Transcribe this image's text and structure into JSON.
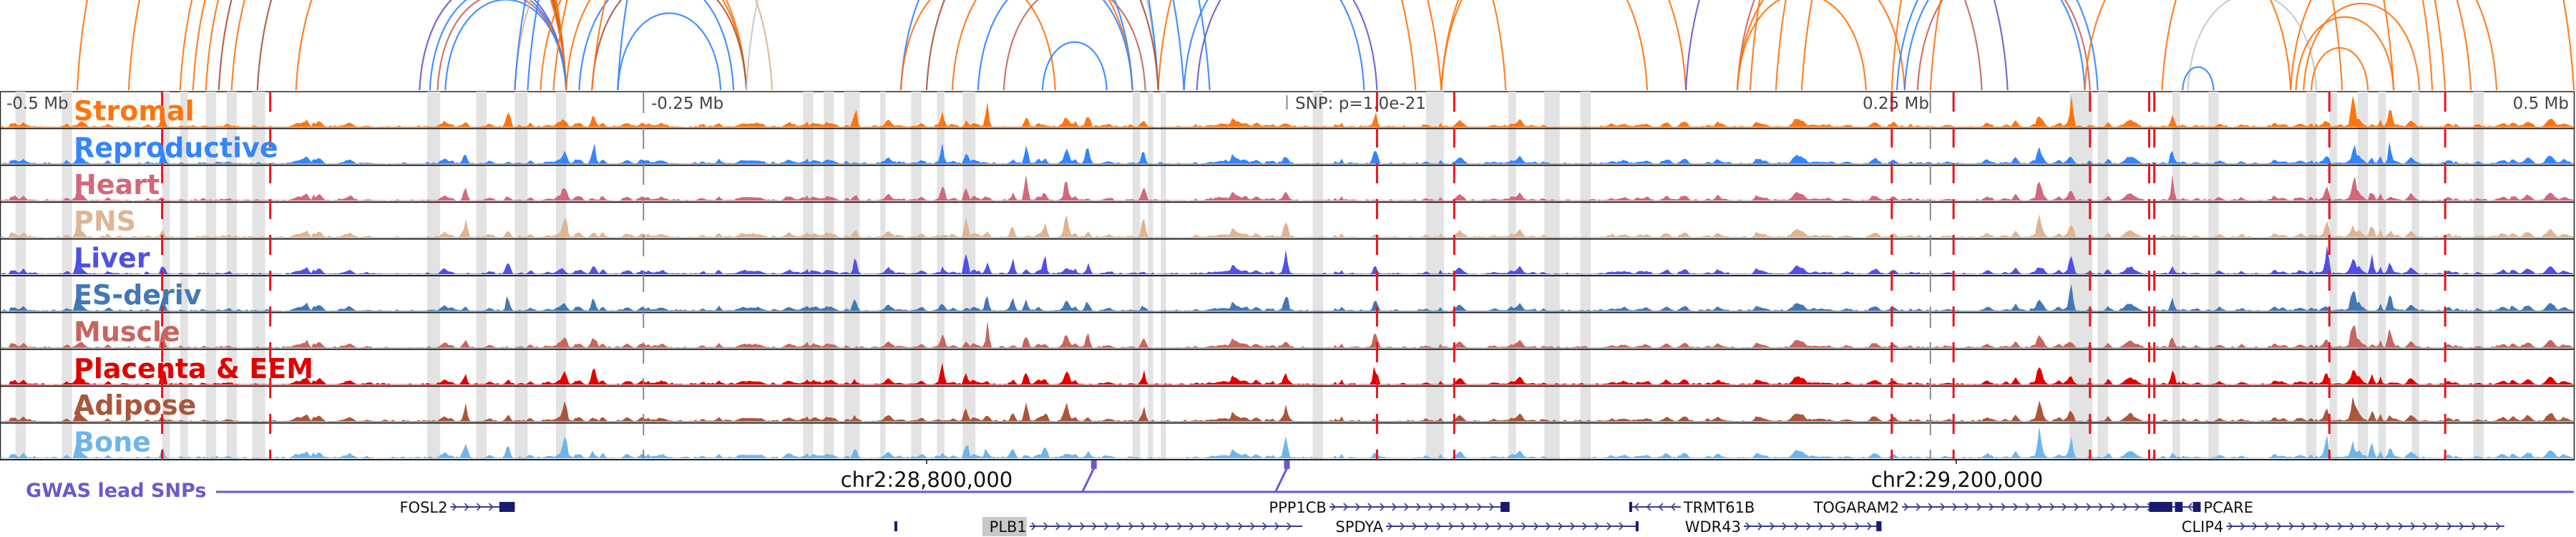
{
  "view": {
    "region_mb": [
      -0.5,
      0.5
    ],
    "axis_ticks": [
      {
        "pos_mb": -0.5,
        "label": "-0.5 Mb"
      },
      {
        "pos_mb": -0.25,
        "label": "-0.25 Mb"
      },
      {
        "pos_mb": 0.25,
        "label": "0.25 Mb"
      },
      {
        "pos_mb": 0.5,
        "label": "0.5 Mb"
      }
    ],
    "snp_label": "SNP: p=1.0e-21",
    "coordinates": [
      {
        "pos_mb": -0.14,
        "label": "chr2:28,800,000"
      },
      {
        "pos_mb": 0.26,
        "label": "chr2:29,200,000"
      }
    ]
  },
  "tracks": [
    {
      "name": "Stromal",
      "color": "#ff7410"
    },
    {
      "name": "Reproductive",
      "color": "#3385ff"
    },
    {
      "name": "Heart",
      "color": "#d0697c"
    },
    {
      "name": "PNS",
      "color": "#deb593"
    },
    {
      "name": "Liver",
      "color": "#5050e6"
    },
    {
      "name": "ES-deriv",
      "color": "#4378b3"
    },
    {
      "name": "Muscle",
      "color": "#c6665f"
    },
    {
      "name": "Placenta & EEM",
      "color": "#e00000"
    },
    {
      "name": "Adipose",
      "color": "#a9573b"
    },
    {
      "name": "Bone",
      "color": "#6eb5ea"
    }
  ],
  "highlight_regions_mb": [
    [
      -0.494,
      -0.49
    ],
    [
      -0.476,
      -0.472
    ],
    [
      -0.412,
      -0.408
    ],
    [
      -0.437,
      -0.434
    ],
    [
      -0.43,
      -0.427
    ],
    [
      -0.42,
      -0.416
    ],
    [
      -0.402,
      -0.397
    ],
    [
      -0.334,
      -0.329
    ],
    [
      -0.315,
      -0.311
    ],
    [
      -0.3,
      -0.295
    ],
    [
      -0.284,
      -0.28
    ],
    [
      -0.188,
      -0.184
    ],
    [
      -0.18,
      -0.176
    ],
    [
      -0.172,
      -0.166
    ],
    [
      -0.158,
      -0.156
    ],
    [
      -0.146,
      -0.142
    ],
    [
      -0.136,
      -0.133
    ],
    [
      -0.126,
      -0.121
    ],
    [
      -0.06,
      -0.057
    ],
    [
      -0.054,
      -0.052
    ],
    [
      -0.049,
      -0.047
    ],
    [
      0.01,
      0.014
    ],
    [
      0.054,
      0.058
    ],
    [
      0.058,
      0.061
    ],
    [
      0.086,
      0.089
    ],
    [
      0.1,
      0.106
    ],
    [
      0.114,
      0.118
    ],
    [
      0.304,
      0.313
    ],
    [
      0.315,
      0.319
    ],
    [
      0.344,
      0.347
    ],
    [
      0.358,
      0.362
    ],
    [
      0.396,
      0.4
    ],
    [
      0.405,
      0.408
    ],
    [
      0.416,
      0.42
    ],
    [
      0.424,
      0.427
    ],
    [
      0.437,
      0.44
    ],
    [
      0.461,
      0.465
    ]
  ],
  "red_lines_mb": [
    -0.437,
    -0.395,
    0.035,
    0.065,
    0.235,
    0.259,
    0.312,
    0.335,
    0.405,
    0.45,
    0.337
  ],
  "arcs": [
    {
      "from": -0.47,
      "to": -0.28,
      "color": "#ff7410"
    },
    {
      "from": -0.45,
      "to": -0.28,
      "color": "#ff7410"
    },
    {
      "from": -0.43,
      "to": -0.28,
      "color": "#ff7410"
    },
    {
      "from": -0.425,
      "to": -0.28,
      "color": "#ff7410"
    },
    {
      "from": -0.42,
      "to": -0.28,
      "color": "#ff7410"
    },
    {
      "from": -0.415,
      "to": -0.28,
      "color": "#a9573b"
    },
    {
      "from": -0.41,
      "to": -0.28,
      "color": "#ff7410"
    },
    {
      "from": -0.4,
      "to": -0.28,
      "color": "#a9573b"
    },
    {
      "from": -0.385,
      "to": -0.28,
      "color": "#ff7410"
    },
    {
      "from": -0.337,
      "to": -0.28,
      "color": "#6a5acd"
    },
    {
      "from": -0.333,
      "to": -0.28,
      "color": "#3385ff"
    },
    {
      "from": -0.33,
      "to": -0.28,
      "color": "#c6665f"
    },
    {
      "from": -0.327,
      "to": -0.28,
      "color": "#3385ff"
    },
    {
      "from": -0.3,
      "to": -0.2,
      "color": "#deb593"
    },
    {
      "from": -0.29,
      "to": -0.21,
      "color": "#ff7410"
    },
    {
      "from": -0.28,
      "to": -0.21,
      "color": "#ff7410"
    },
    {
      "from": -0.275,
      "to": -0.215,
      "color": "#3385ff"
    },
    {
      "from": -0.27,
      "to": -0.21,
      "color": "#a9573b"
    },
    {
      "from": -0.26,
      "to": -0.22,
      "color": "#3385ff"
    },
    {
      "from": -0.21,
      "to": -0.05,
      "color": "#c8c8c8"
    },
    {
      "from": -0.3,
      "to": -0.04,
      "color": "#3385ff"
    },
    {
      "from": -0.295,
      "to": -0.03,
      "color": "#3385ff"
    },
    {
      "from": -0.285,
      "to": 0.05,
      "color": "#ff7410"
    },
    {
      "from": -0.27,
      "to": 0.06,
      "color": "#ff7410"
    },
    {
      "from": -0.26,
      "to": -0.05,
      "color": "#3385ff"
    },
    {
      "from": -0.05,
      "to": 0.085,
      "color": "#ff7410"
    },
    {
      "from": -0.06,
      "to": -0.15,
      "color": "#3385ff"
    },
    {
      "from": -0.15,
      "to": -0.09,
      "color": "#ff7410"
    },
    {
      "from": -0.14,
      "to": -0.05,
      "color": "#a9573b"
    },
    {
      "from": -0.13,
      "to": -0.06,
      "color": "#ff7410"
    },
    {
      "from": -0.12,
      "to": -0.06,
      "color": "#3385ff"
    },
    {
      "from": -0.11,
      "to": -0.055,
      "color": "#c6665f"
    },
    {
      "from": -0.095,
      "to": -0.07,
      "color": "#3385ff"
    },
    {
      "from": -0.035,
      "to": 0.035,
      "color": "#6a5acd"
    },
    {
      "from": -0.04,
      "to": 0.03,
      "color": "#3385ff"
    },
    {
      "from": 0.06,
      "to": 0.155,
      "color": "#ff7410"
    },
    {
      "from": 0.06,
      "to": 0.14,
      "color": "#ff7410"
    },
    {
      "from": 0.155,
      "to": 0.28,
      "color": "#6a5acd"
    },
    {
      "from": 0.175,
      "to": 0.27,
      "color": "#c6665f"
    },
    {
      "from": 0.175,
      "to": 0.24,
      "color": "#ff7410"
    },
    {
      "from": 0.175,
      "to": 0.225,
      "color": "#ff7410"
    },
    {
      "from": 0.235,
      "to": 0.445,
      "color": "#ff7410"
    },
    {
      "from": 0.237,
      "to": 0.315,
      "color": "#3385ff"
    },
    {
      "from": 0.24,
      "to": 0.31,
      "color": "#3385ff"
    },
    {
      "from": 0.245,
      "to": 0.312,
      "color": "#c6665f"
    },
    {
      "from": 0.31,
      "to": 0.39,
      "color": "#ff7410"
    },
    {
      "from": 0.35,
      "to": 0.4,
      "color": "#c8c8c8"
    },
    {
      "from": 0.348,
      "to": 0.36,
      "color": "#3385ff"
    },
    {
      "from": 0.39,
      "to": 0.47,
      "color": "#ff7410"
    },
    {
      "from": 0.392,
      "to": 0.43,
      "color": "#ff7410"
    },
    {
      "from": 0.395,
      "to": 0.44,
      "color": "#ff7410"
    },
    {
      "from": 0.398,
      "to": 0.42,
      "color": "#ff7410"
    },
    {
      "from": 0.18,
      "to": 0.41,
      "color": "#ff7410"
    },
    {
      "from": 0.19,
      "to": 0.43,
      "color": "#ff7410"
    },
    {
      "from": 0.2,
      "to": 0.45,
      "color": "#ff7410"
    },
    {
      "from": 0.25,
      "to": 0.5,
      "color": "#ff7410"
    },
    {
      "from": 0.34,
      "to": 0.46,
      "color": "#ff7410"
    }
  ],
  "gwas": {
    "label": "GWAS lead SNPs",
    "color": "#6a5acd",
    "snps_mb": [
      -0.075,
      0.0
    ]
  },
  "genes": [
    {
      "name": "FOSL2",
      "start": -0.325,
      "end": -0.3,
      "row": 0,
      "strand": "+",
      "label_side": "left",
      "highlight": false,
      "blocks": [
        [
          -0.306,
          -0.3
        ]
      ]
    },
    {
      "name": "PLB1",
      "start": -0.1,
      "end": 0.006,
      "row": 1,
      "strand": "+",
      "label_side": "left",
      "highlight": true,
      "blocks": [
        [
          -0.1525,
          -0.152
        ]
      ]
    },
    {
      "name": "PPP1CB",
      "start": 0.0165,
      "end": 0.0865,
      "row": 0,
      "strand": "+",
      "label_side": "left",
      "highlight": false,
      "blocks": [
        [
          0.083,
          0.0865
        ]
      ]
    },
    {
      "name": "SPDYA",
      "start": 0.0385,
      "end": 0.1365,
      "row": 1,
      "strand": "+",
      "label_side": "left",
      "highlight": false,
      "blocks": [
        [
          0.1355,
          0.1365
        ]
      ]
    },
    {
      "name": "TRMT61B",
      "start": 0.133,
      "end": 0.153,
      "row": 0,
      "strand": "-",
      "label_side": "right",
      "highlight": false,
      "blocks": [
        [
          0.133,
          0.134
        ]
      ]
    },
    {
      "name": "WDR43",
      "start": 0.1775,
      "end": 0.231,
      "row": 1,
      "strand": "+",
      "label_side": "left",
      "highlight": false,
      "blocks": [
        [
          0.229,
          0.231
        ]
      ]
    },
    {
      "name": "TOGARAM2",
      "start": 0.239,
      "end": 0.345,
      "row": 0,
      "strand": "+",
      "label_side": "left",
      "highlight": false,
      "blocks": [
        [
          0.335,
          0.344
        ],
        [
          0.345,
          0.348
        ]
      ]
    },
    {
      "name": "PCARE",
      "start": 0.348,
      "end": 0.355,
      "row": 0,
      "strand": "-",
      "label_side": "right",
      "highlight": false,
      "blocks": [
        [
          0.352,
          0.355
        ]
      ]
    },
    {
      "name": "CLIP4",
      "start": 0.365,
      "end": 0.473,
      "row": 1,
      "strand": "+",
      "label_side": "left",
      "highlight": false,
      "blocks": []
    }
  ]
}
